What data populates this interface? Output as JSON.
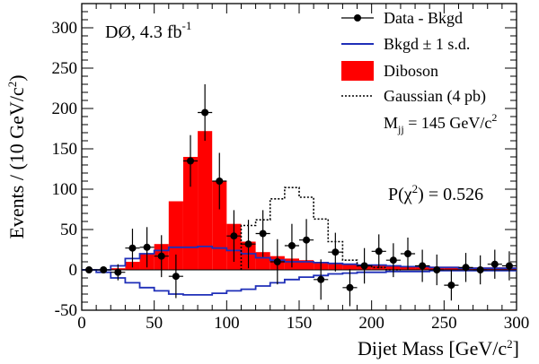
{
  "chart_data": {
    "type": "histogram",
    "experiment_label": "DØ, 4.3 fb",
    "experiment_label_sup": "-1",
    "xlabel": "Dijet Mass [GeV/c",
    "xlabel_sup": "2",
    "xlabel_end": "]",
    "ylabel": "Events / (10 GeV/c",
    "ylabel_sup": "2",
    "ylabel_end": ")",
    "xlim": [
      0,
      300
    ],
    "ylim": [
      -50,
      330
    ],
    "x_ticks": [
      0,
      50,
      100,
      150,
      200,
      250,
      300
    ],
    "y_ticks": [
      -50,
      0,
      50,
      100,
      150,
      200,
      250,
      300
    ],
    "bin_edges": [
      0,
      10,
      20,
      30,
      40,
      50,
      60,
      70,
      80,
      90,
      100,
      110,
      120,
      130,
      140,
      150,
      160,
      170,
      180,
      190,
      200,
      210,
      220,
      230,
      240,
      250,
      260,
      270,
      280,
      290,
      300
    ],
    "series": [
      {
        "name": "Data - Bkgd",
        "style": "points",
        "color": "#000000",
        "x": [
          5,
          15,
          25,
          35,
          45,
          55,
          65,
          75,
          85,
          95,
          105,
          115,
          125,
          135,
          145,
          155,
          165,
          175,
          185,
          195,
          205,
          215,
          225,
          235,
          245,
          255,
          265,
          275,
          285,
          295
        ],
        "y": [
          0,
          0,
          -3,
          27,
          28,
          17,
          -8,
          135,
          195,
          110,
          42,
          32,
          45,
          10,
          30,
          37,
          -12,
          22,
          -22,
          5,
          23,
          12,
          20,
          5,
          0,
          -19,
          3,
          0,
          7,
          5
        ],
        "err": [
          0,
          0,
          10,
          24,
          25,
          26,
          27,
          32,
          35,
          35,
          32,
          30,
          29,
          28,
          27,
          26,
          25,
          24,
          23,
          22,
          21,
          21,
          20,
          20,
          19,
          19,
          18,
          18,
          18,
          18
        ]
      },
      {
        "name": "Bkgd ± 1 s.d.",
        "style": "step-band",
        "color": "#1f2fb8",
        "upper": [
          0,
          0,
          5,
          14,
          20,
          24,
          28,
          28,
          29,
          27,
          24,
          20,
          15,
          12,
          10,
          10,
          9,
          8,
          7,
          6,
          6,
          5,
          4,
          4,
          3,
          3,
          2,
          2,
          2,
          2
        ],
        "lower": [
          0,
          -3,
          -10,
          -16,
          -22,
          -26,
          -30,
          -31,
          -31,
          -29,
          -26,
          -24,
          -20,
          -16,
          -12,
          -9,
          -7,
          -5,
          -4,
          -3,
          -3,
          -2,
          -2,
          -2,
          -1,
          -1,
          -1,
          -1,
          -1,
          -1
        ]
      },
      {
        "name": "Diboson",
        "style": "filled-histogram",
        "color": "#ff0000",
        "values": [
          0,
          0,
          2,
          10,
          20,
          32,
          85,
          140,
          172,
          110,
          57,
          35,
          22,
          17,
          14,
          12,
          10,
          8,
          7,
          6,
          6,
          5,
          5,
          5,
          4,
          4,
          3,
          3,
          3,
          3
        ]
      },
      {
        "name": "Gaussian (4 pb)",
        "style": "dotted-step",
        "color": "#000000",
        "values": [
          0,
          0,
          0,
          0,
          0,
          0,
          0,
          0,
          0,
          0,
          0,
          55,
          62,
          88,
          102,
          90,
          63,
          35,
          12,
          5,
          3,
          0,
          0,
          0,
          0,
          0,
          0,
          0,
          0,
          0
        ]
      }
    ],
    "legend_position": "top-right",
    "mass_label": "M",
    "mass_sub": "jj",
    "mass_value": " = 145 GeV/c",
    "mass_sup": "2",
    "chi2_label": "P(χ",
    "chi2_sup": "2",
    "chi2_value": ") = 0.526",
    "grid": false
  }
}
